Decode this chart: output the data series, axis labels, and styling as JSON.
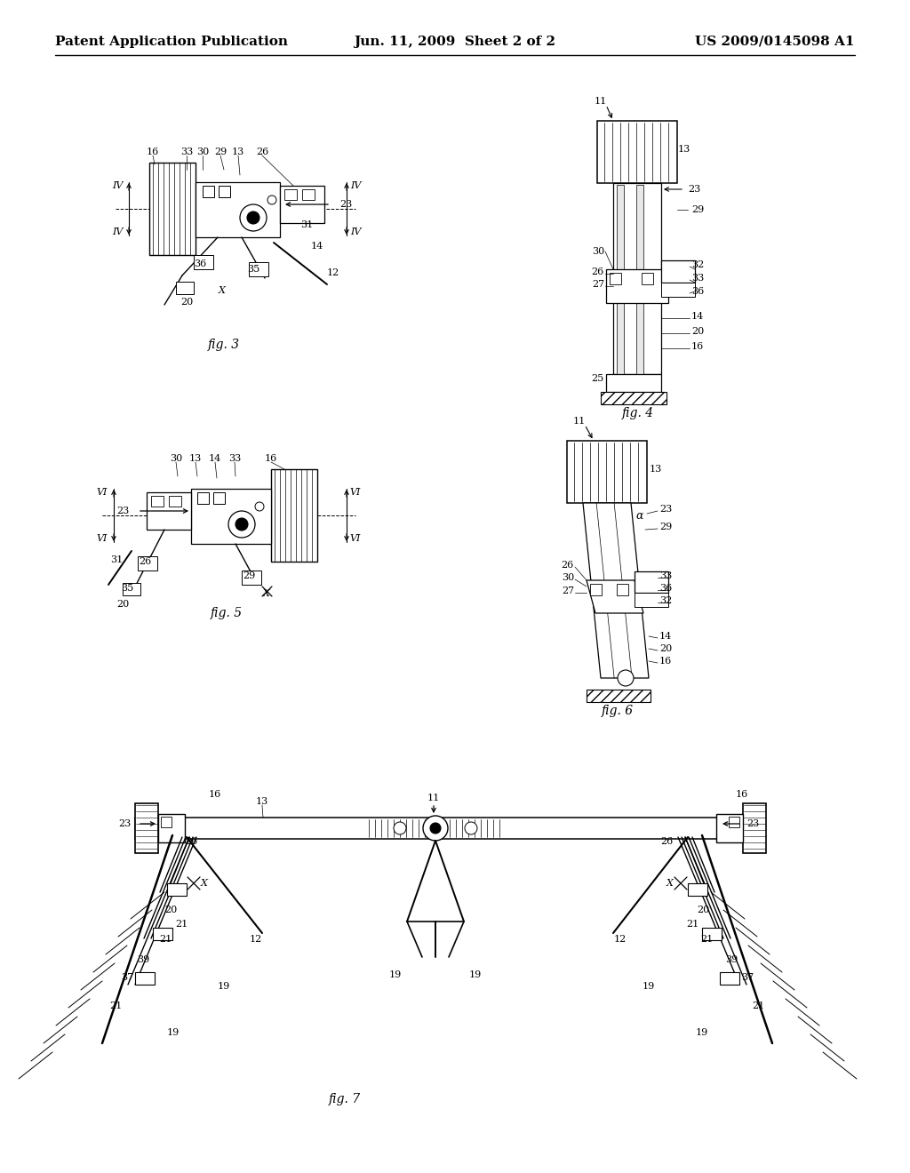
{
  "background_color": "#ffffff",
  "header_left": "Patent Application Publication",
  "header_center": "Jun. 11, 2009  Sheet 2 of 2",
  "header_right": "US 2009/0145098 A1",
  "header_fontsize": 11,
  "fig_width": 10.24,
  "fig_height": 13.2,
  "dpi": 100
}
